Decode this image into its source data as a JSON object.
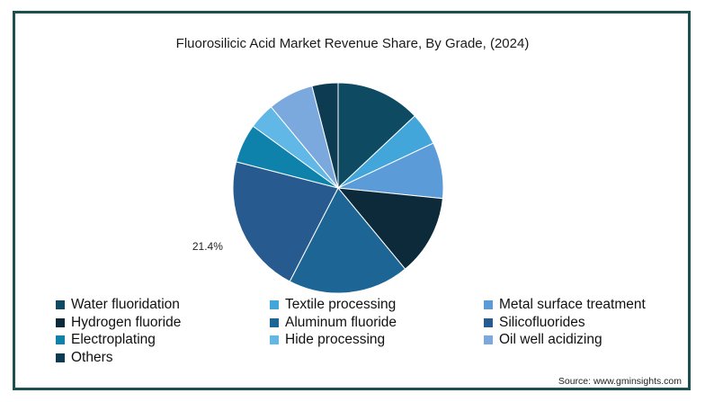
{
  "chart_data": {
    "type": "pie",
    "title": "Fluorosilicic Acid Market Revenue Share, By Grade, (2024)",
    "slices": [
      {
        "name": "Water fluoridation",
        "value": 13.0,
        "color": "#0f4a63"
      },
      {
        "name": "Textile processing",
        "value": 5.0,
        "color": "#43a6db"
      },
      {
        "name": "Metal surface treatment",
        "value": 8.6,
        "color": "#5b9bd8"
      },
      {
        "name": "Hydrogen fluoride",
        "value": 12.4,
        "color": "#0c2a3a"
      },
      {
        "name": "Aluminum fluoride",
        "value": 18.6,
        "color": "#1d6595"
      },
      {
        "name": "Silicofluorides",
        "value": 21.4,
        "color": "#275a8e"
      },
      {
        "name": "Electroplating",
        "value": 6.0,
        "color": "#0e82aa"
      },
      {
        "name": "Hide processing",
        "value": 4.0,
        "color": "#61b8e6"
      },
      {
        "name": "Oil well acidizing",
        "value": 7.0,
        "color": "#7ba9de"
      },
      {
        "name": "Others",
        "value": 4.0,
        "color": "#0d3b51"
      }
    ],
    "data_labels": [
      {
        "slice": "Silicofluorides",
        "text": "21.4%"
      }
    ],
    "legend_position": "bottom"
  },
  "source": "Source: www.gminsights.com"
}
